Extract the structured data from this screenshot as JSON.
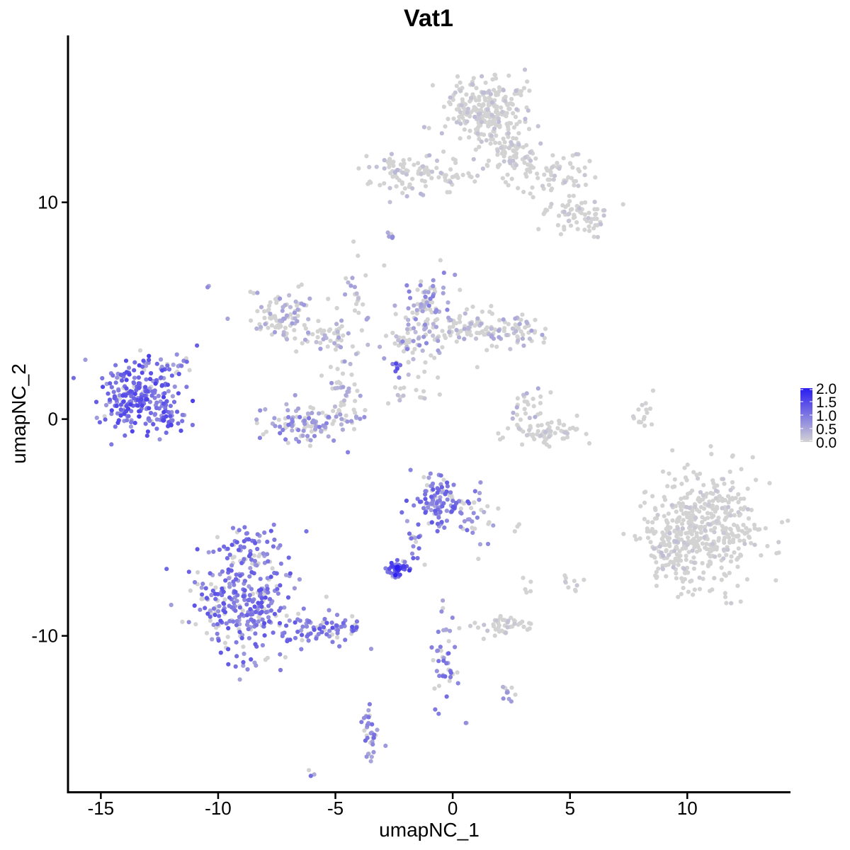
{
  "chart_data": {
    "type": "scatter",
    "title": "Vat1",
    "xlabel": "umapNC_1",
    "ylabel": "umapNC_2",
    "xlim": [
      -16.4,
      14.4
    ],
    "ylim": [
      -17.2,
      17.7
    ],
    "x_ticks": [
      -15,
      -10,
      -5,
      0,
      5,
      10
    ],
    "x_tick_labels": [
      "-15",
      "-10",
      "-5",
      "0",
      "5",
      "10"
    ],
    "y_ticks": [
      -10,
      0,
      10
    ],
    "y_tick_labels": [
      "-10",
      "0",
      "10"
    ],
    "grid": false,
    "colors": {
      "low": "#d3d3d3",
      "high": "#2a1cf0",
      "axis": "#000000"
    },
    "legend": {
      "position": "right",
      "type": "colorbar",
      "range": [
        0,
        2.0
      ],
      "ticks": [
        2.0,
        1.5,
        1.0,
        0.5,
        0.0
      ],
      "tick_labels": [
        "2.0",
        "1.5",
        "1.0",
        "0.5",
        "0.0"
      ]
    },
    "clusters": [
      {
        "name": "",
        "cx": -13.3,
        "cy": 0.9,
        "sx": 0.9,
        "sy": 0.85,
        "n": 260,
        "expr": 0.95
      },
      {
        "name": "",
        "cx": -12.1,
        "cy": -0.1,
        "sx": 0.25,
        "sy": 0.12,
        "n": 12,
        "expr": 1.0
      },
      {
        "name": "",
        "cx": -8.8,
        "cy": -8.6,
        "sx": 1.1,
        "sy": 1.2,
        "n": 300,
        "expr": 0.85
      },
      {
        "name": "",
        "cx": -8.6,
        "cy": -6.0,
        "sx": 0.6,
        "sy": 0.6,
        "n": 60,
        "expr": 0.8
      },
      {
        "name": "",
        "cx": -5.3,
        "cy": -9.6,
        "sx": 0.9,
        "sy": 0.35,
        "n": 70,
        "expr": 0.85
      },
      {
        "name": "",
        "cx": -6.2,
        "cy": -0.2,
        "sx": 1.0,
        "sy": 0.45,
        "n": 110,
        "expr": 0.6
      },
      {
        "name": "",
        "cx": -4.6,
        "cy": 1.1,
        "sx": 0.4,
        "sy": 0.8,
        "n": 40,
        "expr": 0.45
      },
      {
        "name": "",
        "cx": -7.2,
        "cy": 4.9,
        "sx": 0.6,
        "sy": 0.6,
        "n": 80,
        "expr": 0.4
      },
      {
        "name": "",
        "cx": -5.2,
        "cy": 3.8,
        "sx": 0.9,
        "sy": 0.35,
        "n": 50,
        "expr": 0.35
      },
      {
        "name": "",
        "cx": -4.2,
        "cy": 5.6,
        "sx": 0.35,
        "sy": 1.1,
        "n": 25,
        "expr": 0.35
      },
      {
        "name": "",
        "cx": -1.1,
        "cy": 5.0,
        "sx": 0.5,
        "sy": 0.9,
        "n": 90,
        "expr": 0.55
      },
      {
        "name": "",
        "cx": 1.5,
        "cy": 4.2,
        "sx": 1.2,
        "sy": 0.45,
        "n": 140,
        "expr": 0.3
      },
      {
        "name": "",
        "cx": -1.9,
        "cy": 3.4,
        "sx": 0.5,
        "sy": 0.5,
        "n": 40,
        "expr": 0.35
      },
      {
        "name": "",
        "cx": -2.4,
        "cy": 2.4,
        "sx": 0.15,
        "sy": 0.15,
        "n": 10,
        "expr": 1.1
      },
      {
        "name": "",
        "cx": -1.8,
        "cy": 1.2,
        "sx": 0.6,
        "sy": 0.35,
        "n": 15,
        "expr": 0.25
      },
      {
        "name": "",
        "cx": 1.4,
        "cy": 14.2,
        "sx": 0.9,
        "sy": 0.8,
        "n": 260,
        "expr": 0.15
      },
      {
        "name": "",
        "cx": 2.5,
        "cy": 12.4,
        "sx": 0.5,
        "sy": 0.55,
        "n": 60,
        "expr": 0.12
      },
      {
        "name": "",
        "cx": -2.1,
        "cy": 11.4,
        "sx": 0.9,
        "sy": 0.45,
        "n": 80,
        "expr": 0.2
      },
      {
        "name": "",
        "cx": 0.3,
        "cy": 11.3,
        "sx": 0.9,
        "sy": 0.4,
        "n": 35,
        "expr": 0.15
      },
      {
        "name": "",
        "cx": 4.2,
        "cy": 11.3,
        "sx": 1.0,
        "sy": 0.6,
        "n": 70,
        "expr": 0.12
      },
      {
        "name": "",
        "cx": 5.4,
        "cy": 9.4,
        "sx": 0.7,
        "sy": 0.5,
        "n": 70,
        "expr": 0.12
      },
      {
        "name": "",
        "cx": -2.7,
        "cy": 8.5,
        "sx": 0.1,
        "sy": 0.15,
        "n": 6,
        "expr": 0.6
      },
      {
        "name": "",
        "cx": 3.8,
        "cy": -0.6,
        "sx": 0.9,
        "sy": 0.3,
        "n": 70,
        "expr": 0.12
      },
      {
        "name": "",
        "cx": 3.2,
        "cy": 0.6,
        "sx": 0.3,
        "sy": 0.5,
        "n": 25,
        "expr": 0.3
      },
      {
        "name": "",
        "cx": 8.1,
        "cy": 0.2,
        "sx": 0.15,
        "sy": 0.6,
        "n": 16,
        "expr": 0.05
      },
      {
        "name": "",
        "cx": 10.7,
        "cy": -5.0,
        "sx": 1.2,
        "sy": 1.3,
        "n": 450,
        "expr": 0.1
      },
      {
        "name": "",
        "cx": 9.2,
        "cy": -6.0,
        "sx": 0.5,
        "sy": 0.9,
        "n": 60,
        "expr": 0.15
      },
      {
        "name": "",
        "cx": -0.5,
        "cy": -3.8,
        "sx": 0.6,
        "sy": 0.6,
        "n": 120,
        "expr": 0.8
      },
      {
        "name": "",
        "cx": 0.9,
        "cy": -4.6,
        "sx": 0.35,
        "sy": 0.6,
        "n": 25,
        "expr": 0.6
      },
      {
        "name": "",
        "cx": -2.4,
        "cy": -6.9,
        "sx": 0.3,
        "sy": 0.2,
        "n": 50,
        "expr": 1.2
      },
      {
        "name": "",
        "cx": -1.6,
        "cy": -5.8,
        "sx": 0.2,
        "sy": 0.45,
        "n": 15,
        "expr": 0.7
      },
      {
        "name": "",
        "cx": 2.3,
        "cy": -9.5,
        "sx": 0.6,
        "sy": 0.25,
        "n": 45,
        "expr": 0.12
      },
      {
        "name": "",
        "cx": -0.3,
        "cy": -11.3,
        "sx": 0.3,
        "sy": 1.1,
        "n": 45,
        "expr": 0.7
      },
      {
        "name": "",
        "cx": -3.4,
        "cy": -14.6,
        "sx": 0.25,
        "sy": 0.6,
        "n": 35,
        "expr": 0.7
      },
      {
        "name": "",
        "cx": 2.4,
        "cy": -12.6,
        "sx": 0.2,
        "sy": 0.2,
        "n": 10,
        "expr": 0.5
      },
      {
        "name": "",
        "cx": 5.0,
        "cy": -7.5,
        "sx": 0.25,
        "sy": 0.2,
        "n": 10,
        "expr": 0.1
      },
      {
        "name": "",
        "cx": 3.3,
        "cy": -7.7,
        "sx": 0.2,
        "sy": 0.2,
        "n": 5,
        "expr": 0.1
      },
      {
        "name": "",
        "cx": -11.6,
        "cy": 2.5,
        "sx": 0.25,
        "sy": 0.3,
        "n": 8,
        "expr": 0.6
      },
      {
        "name": "",
        "cx": -10.5,
        "cy": 6.1,
        "sx": 0.05,
        "sy": 0.05,
        "n": 2,
        "expr": 0.6
      },
      {
        "name": "",
        "cx": -6.0,
        "cy": -16.3,
        "sx": 0.1,
        "sy": 0.1,
        "n": 3,
        "expr": 0.7
      },
      {
        "name": "",
        "cx": 0.6,
        "cy": -14.0,
        "sx": 0.05,
        "sy": 0.05,
        "n": 2,
        "expr": 0.5
      },
      {
        "name": "",
        "cx": 2.8,
        "cy": -5.1,
        "sx": 0.1,
        "sy": 0.1,
        "n": 3,
        "expr": 0.2
      }
    ]
  }
}
